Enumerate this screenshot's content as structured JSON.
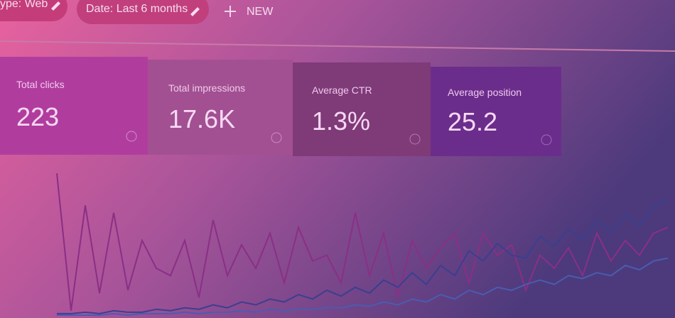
{
  "filters": [
    "ype: Web",
    "Date: Last 6 months"
  ],
  "new_button": "NEW",
  "cards": [
    {
      "label": "Total clicks",
      "value": "223"
    },
    {
      "label": "Total impressions",
      "value": "17.6K"
    },
    {
      "label": "Average CTR",
      "value": "1.3%"
    },
    {
      "label": "Average position",
      "value": "25.2"
    }
  ],
  "chart_data": {
    "type": "line",
    "categories": [
      null,
      null,
      null,
      null,
      null,
      null,
      null,
      null,
      null,
      null,
      null,
      null,
      null,
      null,
      null,
      null,
      null,
      null,
      null,
      null,
      null,
      null,
      null,
      null,
      null,
      null,
      null,
      null,
      null,
      null,
      null,
      null,
      null,
      null,
      null,
      null,
      null,
      null,
      null,
      null,
      null,
      null,
      null,
      null
    ],
    "ylim": [
      0,
      100
    ],
    "series": [
      {
        "name": "Total clicks",
        "color": "#8a2f86",
        "values": [
          98,
          4,
          76,
          16,
          71,
          18,
          52,
          33,
          28,
          52,
          13,
          66,
          28,
          49,
          33,
          57,
          23,
          61,
          38,
          42,
          23,
          71,
          28,
          57,
          13,
          52,
          33,
          47,
          57,
          23,
          57,
          42,
          49,
          18,
          42,
          33,
          47,
          28,
          57,
          38,
          52,
          42,
          57,
          61
        ]
      },
      {
        "name": "Total impressions",
        "color": "#3b3f8f",
        "values": [
          2,
          2,
          3,
          2,
          4,
          3,
          3,
          5,
          4,
          6,
          5,
          8,
          6,
          10,
          8,
          12,
          10,
          15,
          12,
          18,
          14,
          20,
          16,
          25,
          20,
          30,
          22,
          35,
          28,
          45,
          38,
          50,
          42,
          40,
          55,
          48,
          60,
          52,
          65,
          58,
          70,
          62,
          75,
          80
        ]
      },
      {
        "name": "Average CTR",
        "color": "#4a5cb0",
        "values": [
          1,
          1,
          1,
          1,
          2,
          1,
          2,
          2,
          2,
          3,
          2,
          3,
          3,
          4,
          3,
          5,
          4,
          5,
          5,
          6,
          6,
          8,
          7,
          10,
          8,
          12,
          10,
          15,
          12,
          18,
          15,
          20,
          18,
          22,
          25,
          22,
          28,
          26,
          30,
          28,
          35,
          32,
          38,
          40
        ]
      }
    ]
  }
}
